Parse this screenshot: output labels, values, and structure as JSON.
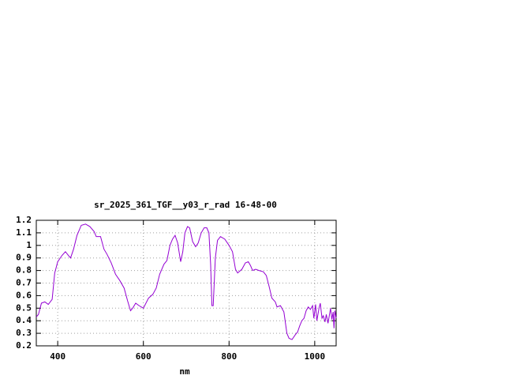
{
  "chart_data": {
    "type": "line",
    "title": "sr_2025_361_TGF__y03_r_rad 16-48-00",
    "xlabel": "nm",
    "color": "#9400d3",
    "grid": true,
    "xlim": [
      350,
      1050
    ],
    "xticks": [
      400,
      600,
      800,
      1000
    ],
    "ylim": [
      0.2,
      1.2
    ],
    "yticks": [
      0.2,
      0.3,
      0.4,
      0.5,
      0.6,
      0.7,
      0.8,
      0.9,
      1,
      1.1,
      1.2
    ],
    "x": [
      350,
      355,
      362,
      370,
      378,
      387,
      393,
      400,
      410,
      418,
      425,
      430,
      437,
      445,
      455,
      465,
      475,
      485,
      490,
      500,
      508,
      515,
      525,
      535,
      545,
      555,
      563,
      570,
      575,
      582,
      590,
      600,
      612,
      622,
      630,
      638,
      648,
      655,
      662,
      668,
      674,
      680,
      687,
      692,
      697,
      703,
      708,
      715,
      722,
      728,
      735,
      742,
      748,
      753,
      757,
      760,
      763,
      768,
      773,
      780,
      790,
      800,
      808,
      815,
      820,
      830,
      838,
      845,
      850,
      855,
      862,
      870,
      880,
      887,
      893,
      900,
      908,
      912,
      920,
      928,
      935,
      940,
      947,
      955,
      960,
      965,
      970,
      975,
      980,
      985,
      990,
      995,
      998,
      1002,
      1005,
      1010,
      1013,
      1017,
      1020,
      1024,
      1027,
      1031,
      1034,
      1037,
      1040,
      1043,
      1045,
      1047,
      1050
    ],
    "values": [
      0.43,
      0.45,
      0.54,
      0.55,
      0.53,
      0.57,
      0.78,
      0.87,
      0.92,
      0.95,
      0.92,
      0.9,
      0.97,
      1.08,
      1.16,
      1.17,
      1.15,
      1.11,
      1.07,
      1.07,
      0.97,
      0.93,
      0.86,
      0.77,
      0.72,
      0.66,
      0.56,
      0.48,
      0.5,
      0.54,
      0.52,
      0.5,
      0.58,
      0.61,
      0.66,
      0.77,
      0.85,
      0.88,
      1.0,
      1.05,
      1.08,
      1.02,
      0.87,
      0.95,
      1.1,
      1.15,
      1.14,
      1.03,
      0.99,
      1.02,
      1.1,
      1.14,
      1.14,
      1.1,
      0.85,
      0.52,
      0.52,
      0.9,
      1.04,
      1.07,
      1.05,
      1.0,
      0.95,
      0.81,
      0.78,
      0.81,
      0.86,
      0.87,
      0.84,
      0.8,
      0.81,
      0.8,
      0.79,
      0.76,
      0.68,
      0.58,
      0.55,
      0.51,
      0.52,
      0.47,
      0.3,
      0.26,
      0.25,
      0.29,
      0.31,
      0.36,
      0.4,
      0.42,
      0.48,
      0.51,
      0.49,
      0.52,
      0.42,
      0.53,
      0.4,
      0.5,
      0.54,
      0.42,
      0.44,
      0.39,
      0.45,
      0.38,
      0.44,
      0.5,
      0.41,
      0.47,
      0.34,
      0.48,
      0.42
    ]
  }
}
